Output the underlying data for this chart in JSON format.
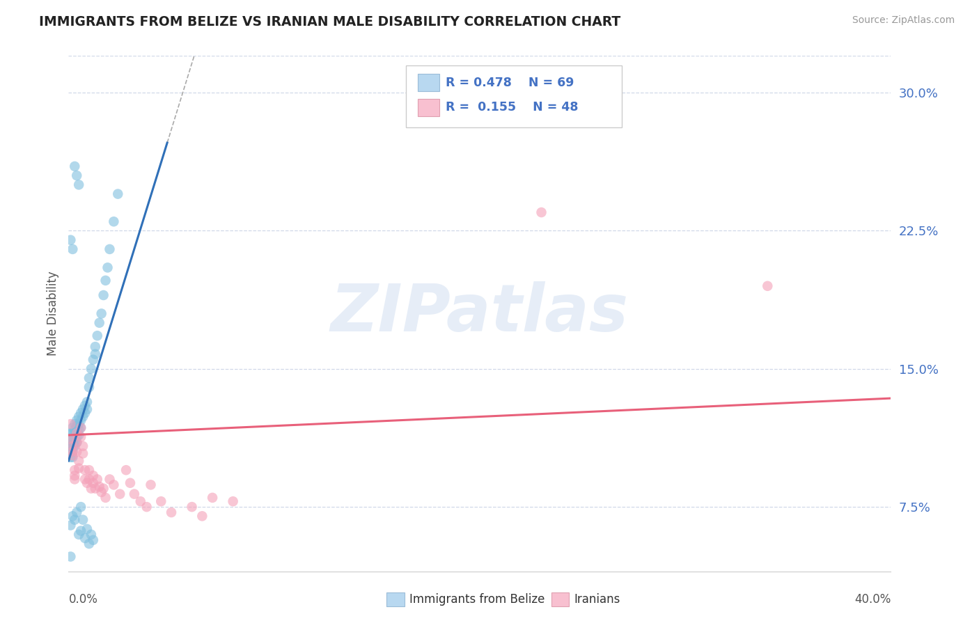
{
  "title": "IMMIGRANTS FROM BELIZE VS IRANIAN MALE DISABILITY CORRELATION CHART",
  "source": "Source: ZipAtlas.com",
  "ylabel": "Male Disability",
  "y_tick_vals": [
    0.075,
    0.15,
    0.225,
    0.3
  ],
  "y_tick_labels": [
    "7.5%",
    "15.0%",
    "22.5%",
    "30.0%"
  ],
  "x_min": 0.0,
  "x_max": 0.4,
  "y_min": 0.04,
  "y_max": 0.32,
  "blue_R": 0.478,
  "blue_N": 69,
  "pink_R": 0.155,
  "pink_N": 48,
  "blue_color": "#7fbfdf",
  "pink_color": "#f4a0b8",
  "blue_line_color": "#3070b8",
  "pink_line_color": "#e8607a",
  "legend_box_blue": "#b8d8f0",
  "legend_box_pink": "#f8c0d0",
  "blue_scatter_x": [
    0.001,
    0.001,
    0.001,
    0.001,
    0.001,
    0.002,
    0.002,
    0.002,
    0.002,
    0.002,
    0.002,
    0.002,
    0.003,
    0.003,
    0.003,
    0.003,
    0.003,
    0.004,
    0.004,
    0.004,
    0.004,
    0.004,
    0.005,
    0.005,
    0.005,
    0.005,
    0.006,
    0.006,
    0.006,
    0.007,
    0.007,
    0.008,
    0.008,
    0.009,
    0.009,
    0.01,
    0.01,
    0.011,
    0.012,
    0.013,
    0.013,
    0.014,
    0.015,
    0.016,
    0.017,
    0.018,
    0.019,
    0.02,
    0.022,
    0.024,
    0.001,
    0.002,
    0.003,
    0.004,
    0.005,
    0.006,
    0.006,
    0.007,
    0.008,
    0.009,
    0.01,
    0.011,
    0.012,
    0.003,
    0.004,
    0.005,
    0.001,
    0.002,
    0.001
  ],
  "blue_scatter_y": [
    0.115,
    0.11,
    0.108,
    0.105,
    0.102,
    0.118,
    0.115,
    0.113,
    0.11,
    0.107,
    0.105,
    0.102,
    0.12,
    0.117,
    0.113,
    0.11,
    0.108,
    0.122,
    0.119,
    0.116,
    0.113,
    0.11,
    0.124,
    0.12,
    0.117,
    0.114,
    0.126,
    0.122,
    0.118,
    0.128,
    0.124,
    0.13,
    0.126,
    0.132,
    0.128,
    0.145,
    0.14,
    0.15,
    0.155,
    0.162,
    0.158,
    0.168,
    0.175,
    0.18,
    0.19,
    0.198,
    0.205,
    0.215,
    0.23,
    0.245,
    0.065,
    0.07,
    0.068,
    0.072,
    0.06,
    0.075,
    0.062,
    0.068,
    0.058,
    0.063,
    0.055,
    0.06,
    0.057,
    0.26,
    0.255,
    0.25,
    0.22,
    0.215,
    0.048
  ],
  "pink_scatter_x": [
    0.001,
    0.001,
    0.002,
    0.002,
    0.002,
    0.003,
    0.003,
    0.003,
    0.004,
    0.004,
    0.004,
    0.005,
    0.005,
    0.006,
    0.006,
    0.007,
    0.007,
    0.008,
    0.008,
    0.009,
    0.01,
    0.01,
    0.011,
    0.012,
    0.012,
    0.013,
    0.014,
    0.015,
    0.016,
    0.017,
    0.018,
    0.02,
    0.022,
    0.025,
    0.028,
    0.03,
    0.032,
    0.035,
    0.038,
    0.04,
    0.045,
    0.05,
    0.06,
    0.065,
    0.07,
    0.08,
    0.23,
    0.34
  ],
  "pink_scatter_y": [
    0.12,
    0.112,
    0.108,
    0.105,
    0.103,
    0.095,
    0.092,
    0.09,
    0.115,
    0.11,
    0.105,
    0.1,
    0.096,
    0.118,
    0.113,
    0.108,
    0.104,
    0.095,
    0.09,
    0.088,
    0.095,
    0.09,
    0.085,
    0.092,
    0.088,
    0.085,
    0.09,
    0.086,
    0.083,
    0.085,
    0.08,
    0.09,
    0.087,
    0.082,
    0.095,
    0.088,
    0.082,
    0.078,
    0.075,
    0.087,
    0.078,
    0.072,
    0.075,
    0.07,
    0.08,
    0.078,
    0.235,
    0.195
  ],
  "watermark_text": "ZIPatlas",
  "background_color": "#ffffff",
  "grid_color": "#d0d8e8"
}
